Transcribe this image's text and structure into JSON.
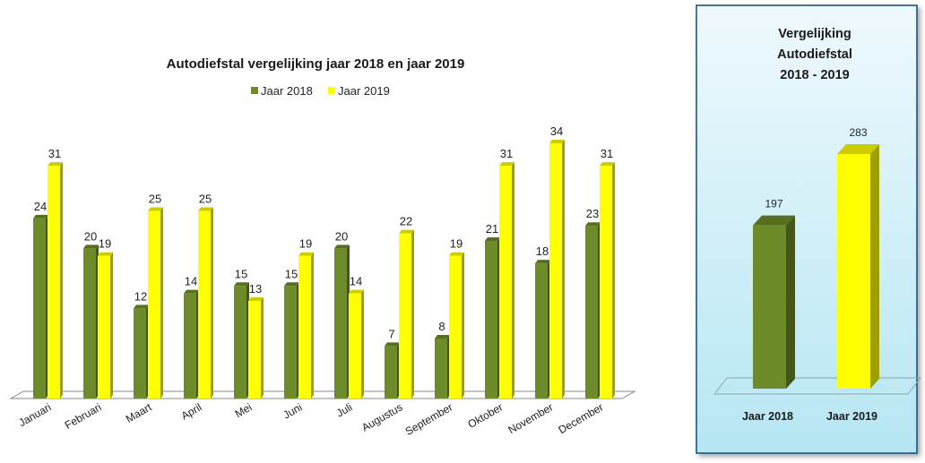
{
  "colors": {
    "jaar2018": "#6e8b2a",
    "jaar2019": "#ffff00",
    "panel_bg_top": "#eef9fd",
    "panel_bg_bottom": "#b6e6f3"
  },
  "chart_data": [
    {
      "type": "bar",
      "title": "Autodiefstal vergelijking jaar 2018 en jaar 2019",
      "xlabel": "",
      "ylabel": "",
      "categories": [
        "Januari",
        "Februari",
        "Maart",
        "April",
        "Mei",
        "Juni",
        "Juli",
        "Augustus",
        "September",
        "Oktober",
        "November",
        "December"
      ],
      "series": [
        {
          "name": "Jaar 2018",
          "values": [
            24,
            20,
            12,
            14,
            15,
            15,
            20,
            7,
            8,
            21,
            18,
            23
          ]
        },
        {
          "name": "Jaar 2019",
          "values": [
            31,
            19,
            25,
            25,
            13,
            19,
            14,
            22,
            19,
            31,
            34,
            31
          ]
        }
      ],
      "ylim": [
        0,
        34
      ],
      "grid": false,
      "legend": "top-center"
    },
    {
      "type": "bar",
      "title": "Vergelijking Autodiefstal 2018 - 2019",
      "title_lines": [
        "Vergelijking",
        "Autodiefstal",
        "2018 - 2019"
      ],
      "categories": [
        "Jaar 2018",
        "Jaar 2019"
      ],
      "values": [
        197,
        283
      ],
      "ylim": [
        0,
        283
      ],
      "grid": false
    }
  ]
}
